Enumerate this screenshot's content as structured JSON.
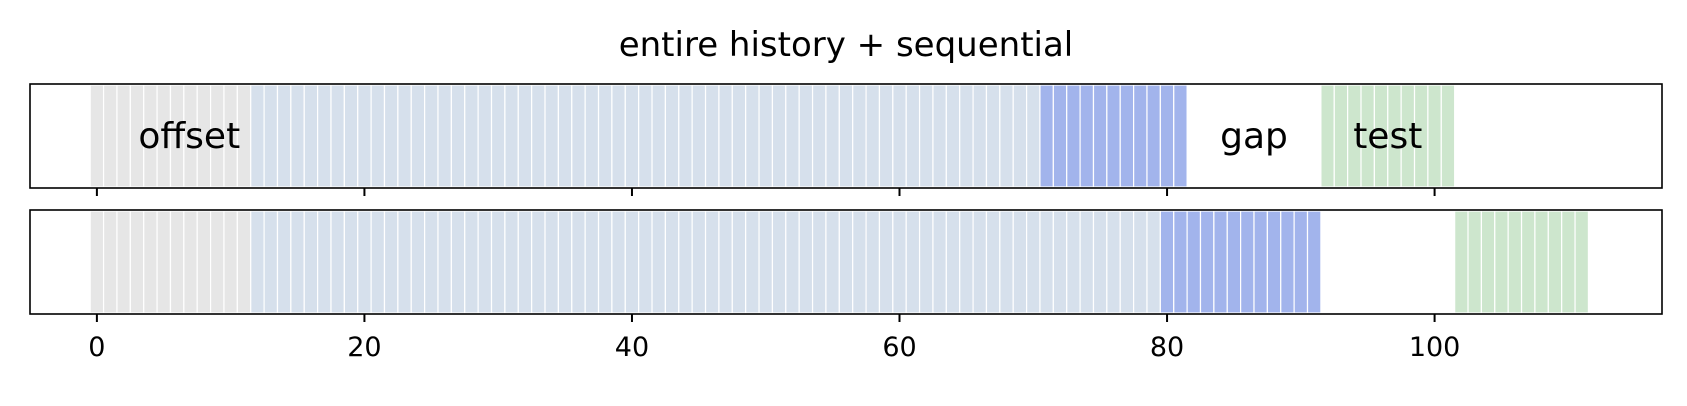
{
  "chart_data": {
    "type": "bar",
    "title": "entire history + sequential",
    "xlabel": "",
    "ylabel": "",
    "xlim": [
      -5,
      117
    ],
    "xticks": [
      0,
      20,
      40,
      60,
      80,
      100
    ],
    "grid": false,
    "colors": {
      "offset": "#e6e6e6",
      "history": "#d6e0ec",
      "window": "#a2b4ec",
      "test": "#cde6cd"
    },
    "rows": [
      {
        "segments": [
          {
            "kind": "offset",
            "start": 0,
            "end": 12,
            "label": "offset"
          },
          {
            "kind": "history",
            "start": 12,
            "end": 71
          },
          {
            "kind": "window",
            "start": 71,
            "end": 82
          },
          {
            "kind": "gap",
            "start": 82,
            "end": 92,
            "label": "gap"
          },
          {
            "kind": "test",
            "start": 92,
            "end": 102,
            "label": "test"
          }
        ]
      },
      {
        "segments": [
          {
            "kind": "offset",
            "start": 0,
            "end": 12
          },
          {
            "kind": "history",
            "start": 12,
            "end": 80
          },
          {
            "kind": "window",
            "start": 80,
            "end": 92
          },
          {
            "kind": "gap",
            "start": 92,
            "end": 102
          },
          {
            "kind": "test",
            "start": 102,
            "end": 112
          }
        ]
      }
    ]
  }
}
